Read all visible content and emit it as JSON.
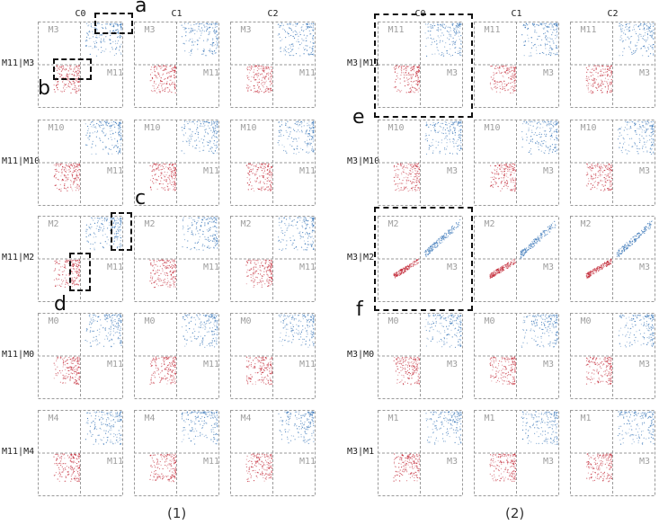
{
  "colors": {
    "blue": "#2c6db3",
    "red": "#c0202f",
    "grid": "#9a9a9a",
    "axis_label": "#9e9e9e"
  },
  "panels": [
    {
      "caption": "(1)",
      "col_headers": [
        "C0",
        "C1",
        "C2"
      ],
      "rows": [
        {
          "label": "M11|M3",
          "top_label": "M3",
          "right_label": "M11",
          "spread": "diffuse"
        },
        {
          "label": "M11|M10",
          "top_label": "M10",
          "right_label": "M11",
          "spread": "diffuse"
        },
        {
          "label": "M11|M2",
          "top_label": "M2",
          "right_label": "M11",
          "spread": "diffuse"
        },
        {
          "label": "M11|M0",
          "top_label": "M0",
          "right_label": "M11",
          "spread": "diffuse"
        },
        {
          "label": "M11|M4",
          "top_label": "M4",
          "right_label": "M11",
          "spread": "diffuse"
        }
      ]
    },
    {
      "caption": "(2)",
      "col_headers": [
        "C0",
        "C1",
        "C2"
      ],
      "rows": [
        {
          "label": "M3|M11",
          "top_label": "M11",
          "right_label": "M3",
          "spread": "diffuse"
        },
        {
          "label": "M3|M10",
          "top_label": "M10",
          "right_label": "M3",
          "spread": "diffuse"
        },
        {
          "label": "M3|M2",
          "top_label": "M2",
          "right_label": "M3",
          "spread": "narrow"
        },
        {
          "label": "M3|M0",
          "top_label": "M0",
          "right_label": "M3",
          "spread": "diffuse"
        },
        {
          "label": "M3|M1",
          "top_label": "M1",
          "right_label": "M3",
          "spread": "diffuse"
        }
      ]
    }
  ],
  "annotations": [
    "a",
    "b",
    "c",
    "d",
    "e",
    "f"
  ]
}
